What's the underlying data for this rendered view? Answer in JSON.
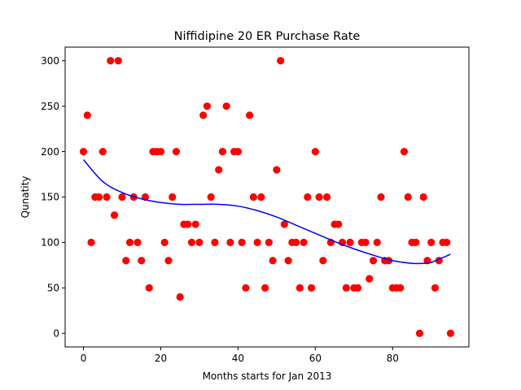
{
  "chart_data": {
    "type": "scatter",
    "title": "Niffidipine 20 ER Purchase Rate",
    "xlabel": "Months starts for Jan 2013",
    "ylabel": "Qunatity",
    "xlim": [
      -4.75,
      99.75
    ],
    "ylim": [
      -15,
      315
    ],
    "xticks": [
      0,
      20,
      40,
      60,
      80
    ],
    "yticks": [
      0,
      50,
      100,
      150,
      200,
      250,
      300
    ],
    "grid": false,
    "series": [
      {
        "kind": "points",
        "color": "#ff0000",
        "x": [
          0,
          1,
          2,
          3,
          4,
          5,
          6,
          7,
          8,
          9,
          10,
          11,
          12,
          13,
          14,
          15,
          16,
          17,
          18,
          19,
          20,
          21,
          22,
          23,
          24,
          25,
          26,
          27,
          28,
          29,
          30,
          31,
          32,
          33,
          34,
          35,
          36,
          37,
          38,
          39,
          40,
          41,
          42,
          43,
          44,
          45,
          46,
          47,
          48,
          49,
          50,
          51,
          52,
          53,
          54,
          55,
          56,
          57,
          58,
          59,
          60,
          61,
          62,
          63,
          64,
          65,
          66,
          67,
          68,
          69,
          70,
          71,
          72,
          73,
          74,
          75,
          76,
          77,
          78,
          79,
          80,
          81,
          82,
          83,
          84,
          85,
          86,
          87,
          88,
          89,
          90,
          91,
          92,
          93,
          94,
          95
        ],
        "y": [
          200,
          240,
          100,
          150,
          150,
          200,
          150,
          300,
          130,
          300,
          150,
          80,
          100,
          150,
          100,
          80,
          150,
          50,
          200,
          200,
          200,
          100,
          80,
          150,
          200,
          40,
          120,
          120,
          100,
          120,
          100,
          240,
          250,
          150,
          100,
          180,
          200,
          250,
          100,
          200,
          200,
          100,
          50,
          240,
          150,
          100,
          150,
          50,
          100,
          80,
          180,
          300,
          120,
          80,
          100,
          100,
          50,
          100,
          150,
          50,
          200,
          150,
          80,
          150,
          100,
          120,
          120,
          100,
          50,
          100,
          50,
          50,
          100,
          100,
          60,
          80,
          100,
          150,
          80,
          80,
          50,
          50,
          50,
          200,
          150,
          100,
          100,
          0,
          150,
          80,
          100,
          50,
          80,
          100,
          100,
          0
        ]
      },
      {
        "kind": "line",
        "color": "#0000ff",
        "x": [
          0,
          5,
          10,
          15,
          20,
          25,
          30,
          35,
          40,
          45,
          50,
          55,
          60,
          65,
          70,
          75,
          80,
          85,
          88,
          90,
          95
        ],
        "y": [
          191,
          167,
          155,
          148,
          144,
          142,
          142,
          142,
          140,
          135,
          128,
          119,
          110,
          101,
          93,
          86,
          80,
          77,
          77,
          78,
          87
        ]
      }
    ]
  }
}
